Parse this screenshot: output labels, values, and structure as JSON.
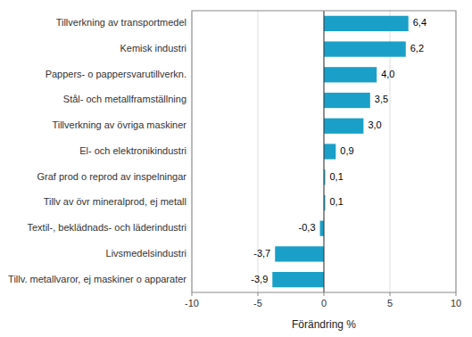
{
  "chart_data": {
    "type": "bar",
    "orientation": "horizontal",
    "categories": [
      "Tillv. metallvaror, ej maskiner o apparater",
      "Livsmedelsindustri",
      "Textil-, beklädnads- och läderindustri",
      "Tillv av övr mineralprod, ej metall",
      "Graf prod o reprod av inspelningar",
      "El- och elektronikindustri",
      "Tillverkning av övriga maskiner",
      "Stål- och metallframställning",
      "Pappers- o pappersvarutillverkn.",
      "Kemisk industri",
      "Tillverkning av transportmedel"
    ],
    "values": [
      -3.9,
      -3.7,
      -0.3,
      0.1,
      0.1,
      0.9,
      3.0,
      3.5,
      4.0,
      6.2,
      6.4
    ],
    "value_labels": [
      "-3,9",
      "-3,7",
      "-0,3",
      "0,1",
      "0,1",
      "0,9",
      "3,0",
      "3,5",
      "4,0",
      "6,2",
      "6,4"
    ],
    "data_labels": true,
    "color": "#1aa0c8",
    "xlabel": "Förändring %",
    "xlim": [
      -10,
      10
    ],
    "xticks": [
      -10,
      -5,
      0,
      5,
      10
    ],
    "grid": true
  }
}
